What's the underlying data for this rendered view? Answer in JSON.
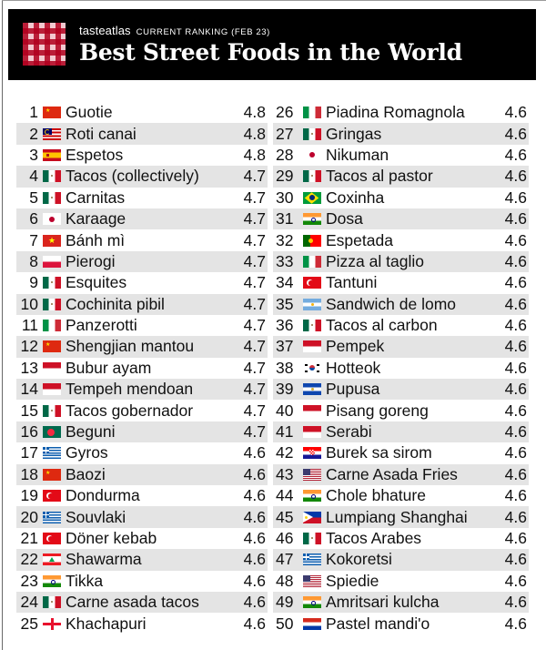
{
  "header": {
    "brand": "tasteatlas",
    "subtitle": "CURRENT RANKING (FEB 23)",
    "title": "Best Street Foods in the World",
    "logo_icon": "gingham-logo-icon",
    "colors": {
      "background": "#000000",
      "logo_red": "#b0001e",
      "text": "#ffffff"
    }
  },
  "chart_data": {
    "type": "table",
    "title": "Best Street Foods in the World",
    "subtitle": "tasteatlas CURRENT RANKING (FEB 23)",
    "columns": [
      "rank",
      "country_flag",
      "dish",
      "rating"
    ],
    "rows": [
      {
        "rank": "1",
        "flag": "china",
        "name": "Guotie",
        "score": "4.8"
      },
      {
        "rank": "2",
        "flag": "malaysia",
        "name": "Roti canai",
        "score": "4.8"
      },
      {
        "rank": "3",
        "flag": "spain",
        "name": "Espetos",
        "score": "4.8"
      },
      {
        "rank": "4",
        "flag": "mexico",
        "name": "Tacos (collectively)",
        "score": "4.7"
      },
      {
        "rank": "5",
        "flag": "mexico",
        "name": "Carnitas",
        "score": "4.7"
      },
      {
        "rank": "6",
        "flag": "japan",
        "name": "Karaage",
        "score": "4.7"
      },
      {
        "rank": "7",
        "flag": "vietnam",
        "name": "Bánh mì",
        "score": "4.7"
      },
      {
        "rank": "8",
        "flag": "poland",
        "name": "Pierogi",
        "score": "4.7"
      },
      {
        "rank": "9",
        "flag": "mexico",
        "name": "Esquites",
        "score": "4.7"
      },
      {
        "rank": "10",
        "flag": "mexico",
        "name": "Cochinita pibil",
        "score": "4.7"
      },
      {
        "rank": "11",
        "flag": "italy",
        "name": "Panzerotti",
        "score": "4.7"
      },
      {
        "rank": "12",
        "flag": "china",
        "name": "Shengjian mantou",
        "score": "4.7"
      },
      {
        "rank": "13",
        "flag": "indonesia",
        "name": "Bubur ayam",
        "score": "4.7"
      },
      {
        "rank": "14",
        "flag": "indonesia",
        "name": "Tempeh mendoan",
        "score": "4.7"
      },
      {
        "rank": "15",
        "flag": "mexico",
        "name": "Tacos gobernador",
        "score": "4.7"
      },
      {
        "rank": "16",
        "flag": "bangladesh",
        "name": "Beguni",
        "score": "4.7"
      },
      {
        "rank": "17",
        "flag": "greece",
        "name": "Gyros",
        "score": "4.6"
      },
      {
        "rank": "18",
        "flag": "china",
        "name": "Baozi",
        "score": "4.6"
      },
      {
        "rank": "19",
        "flag": "turkey",
        "name": "Dondurma",
        "score": "4.6"
      },
      {
        "rank": "20",
        "flag": "greece",
        "name": "Souvlaki",
        "score": "4.6"
      },
      {
        "rank": "21",
        "flag": "turkey",
        "name": "Döner kebab",
        "score": "4.6"
      },
      {
        "rank": "22",
        "flag": "lebanon",
        "name": "Shawarma",
        "score": "4.6"
      },
      {
        "rank": "23",
        "flag": "india",
        "name": "Tikka",
        "score": "4.6"
      },
      {
        "rank": "24",
        "flag": "mexico",
        "name": "Carne asada tacos",
        "score": "4.6"
      },
      {
        "rank": "25",
        "flag": "georgia",
        "name": "Khachapuri",
        "score": "4.6"
      },
      {
        "rank": "26",
        "flag": "italy",
        "name": "Piadina Romagnola",
        "score": "4.6"
      },
      {
        "rank": "27",
        "flag": "mexico",
        "name": "Gringas",
        "score": "4.6"
      },
      {
        "rank": "28",
        "flag": "japan",
        "name": "Nikuman",
        "score": "4.6"
      },
      {
        "rank": "29",
        "flag": "mexico",
        "name": "Tacos al pastor",
        "score": "4.6"
      },
      {
        "rank": "30",
        "flag": "brazil",
        "name": "Coxinha",
        "score": "4.6"
      },
      {
        "rank": "31",
        "flag": "india",
        "name": "Dosa",
        "score": "4.6"
      },
      {
        "rank": "32",
        "flag": "portugal",
        "name": "Espetada",
        "score": "4.6"
      },
      {
        "rank": "33",
        "flag": "italy",
        "name": "Pizza al taglio",
        "score": "4.6"
      },
      {
        "rank": "34",
        "flag": "turkey",
        "name": "Tantuni",
        "score": "4.6"
      },
      {
        "rank": "35",
        "flag": "argentina",
        "name": "Sandwich de lomo",
        "score": "4.6"
      },
      {
        "rank": "36",
        "flag": "mexico",
        "name": "Tacos al carbon",
        "score": "4.6"
      },
      {
        "rank": "37",
        "flag": "indonesia",
        "name": "Pempek",
        "score": "4.6"
      },
      {
        "rank": "38",
        "flag": "south-korea",
        "name": "Hotteok",
        "score": "4.6"
      },
      {
        "rank": "39",
        "flag": "el-salvador",
        "name": "Pupusa",
        "score": "4.6"
      },
      {
        "rank": "40",
        "flag": "indonesia",
        "name": "Pisang goreng",
        "score": "4.6"
      },
      {
        "rank": "41",
        "flag": "indonesia",
        "name": "Serabi",
        "score": "4.6"
      },
      {
        "rank": "42",
        "flag": "croatia",
        "name": "Burek sa sirom",
        "score": "4.6"
      },
      {
        "rank": "43",
        "flag": "usa",
        "name": "Carne Asada Fries",
        "score": "4.6"
      },
      {
        "rank": "44",
        "flag": "india",
        "name": "Chole bhature",
        "score": "4.6"
      },
      {
        "rank": "45",
        "flag": "philippines",
        "name": "Lumpiang Shanghai",
        "score": "4.6"
      },
      {
        "rank": "46",
        "flag": "mexico",
        "name": "Tacos Arabes",
        "score": "4.6"
      },
      {
        "rank": "47",
        "flag": "greece",
        "name": "Kokoretsi",
        "score": "4.6"
      },
      {
        "rank": "48",
        "flag": "usa",
        "name": "Spiedie",
        "score": "4.6"
      },
      {
        "rank": "49",
        "flag": "india",
        "name": "Amritsari kulcha",
        "score": "4.6"
      },
      {
        "rank": "50",
        "flag": "paraguay",
        "name": "Pastel mandi'o",
        "score": "4.6"
      }
    ],
    "layout": {
      "columns_per_page": 2,
      "rows_per_column": 25,
      "zebra_stripe_color": "#e4e4e4"
    }
  }
}
